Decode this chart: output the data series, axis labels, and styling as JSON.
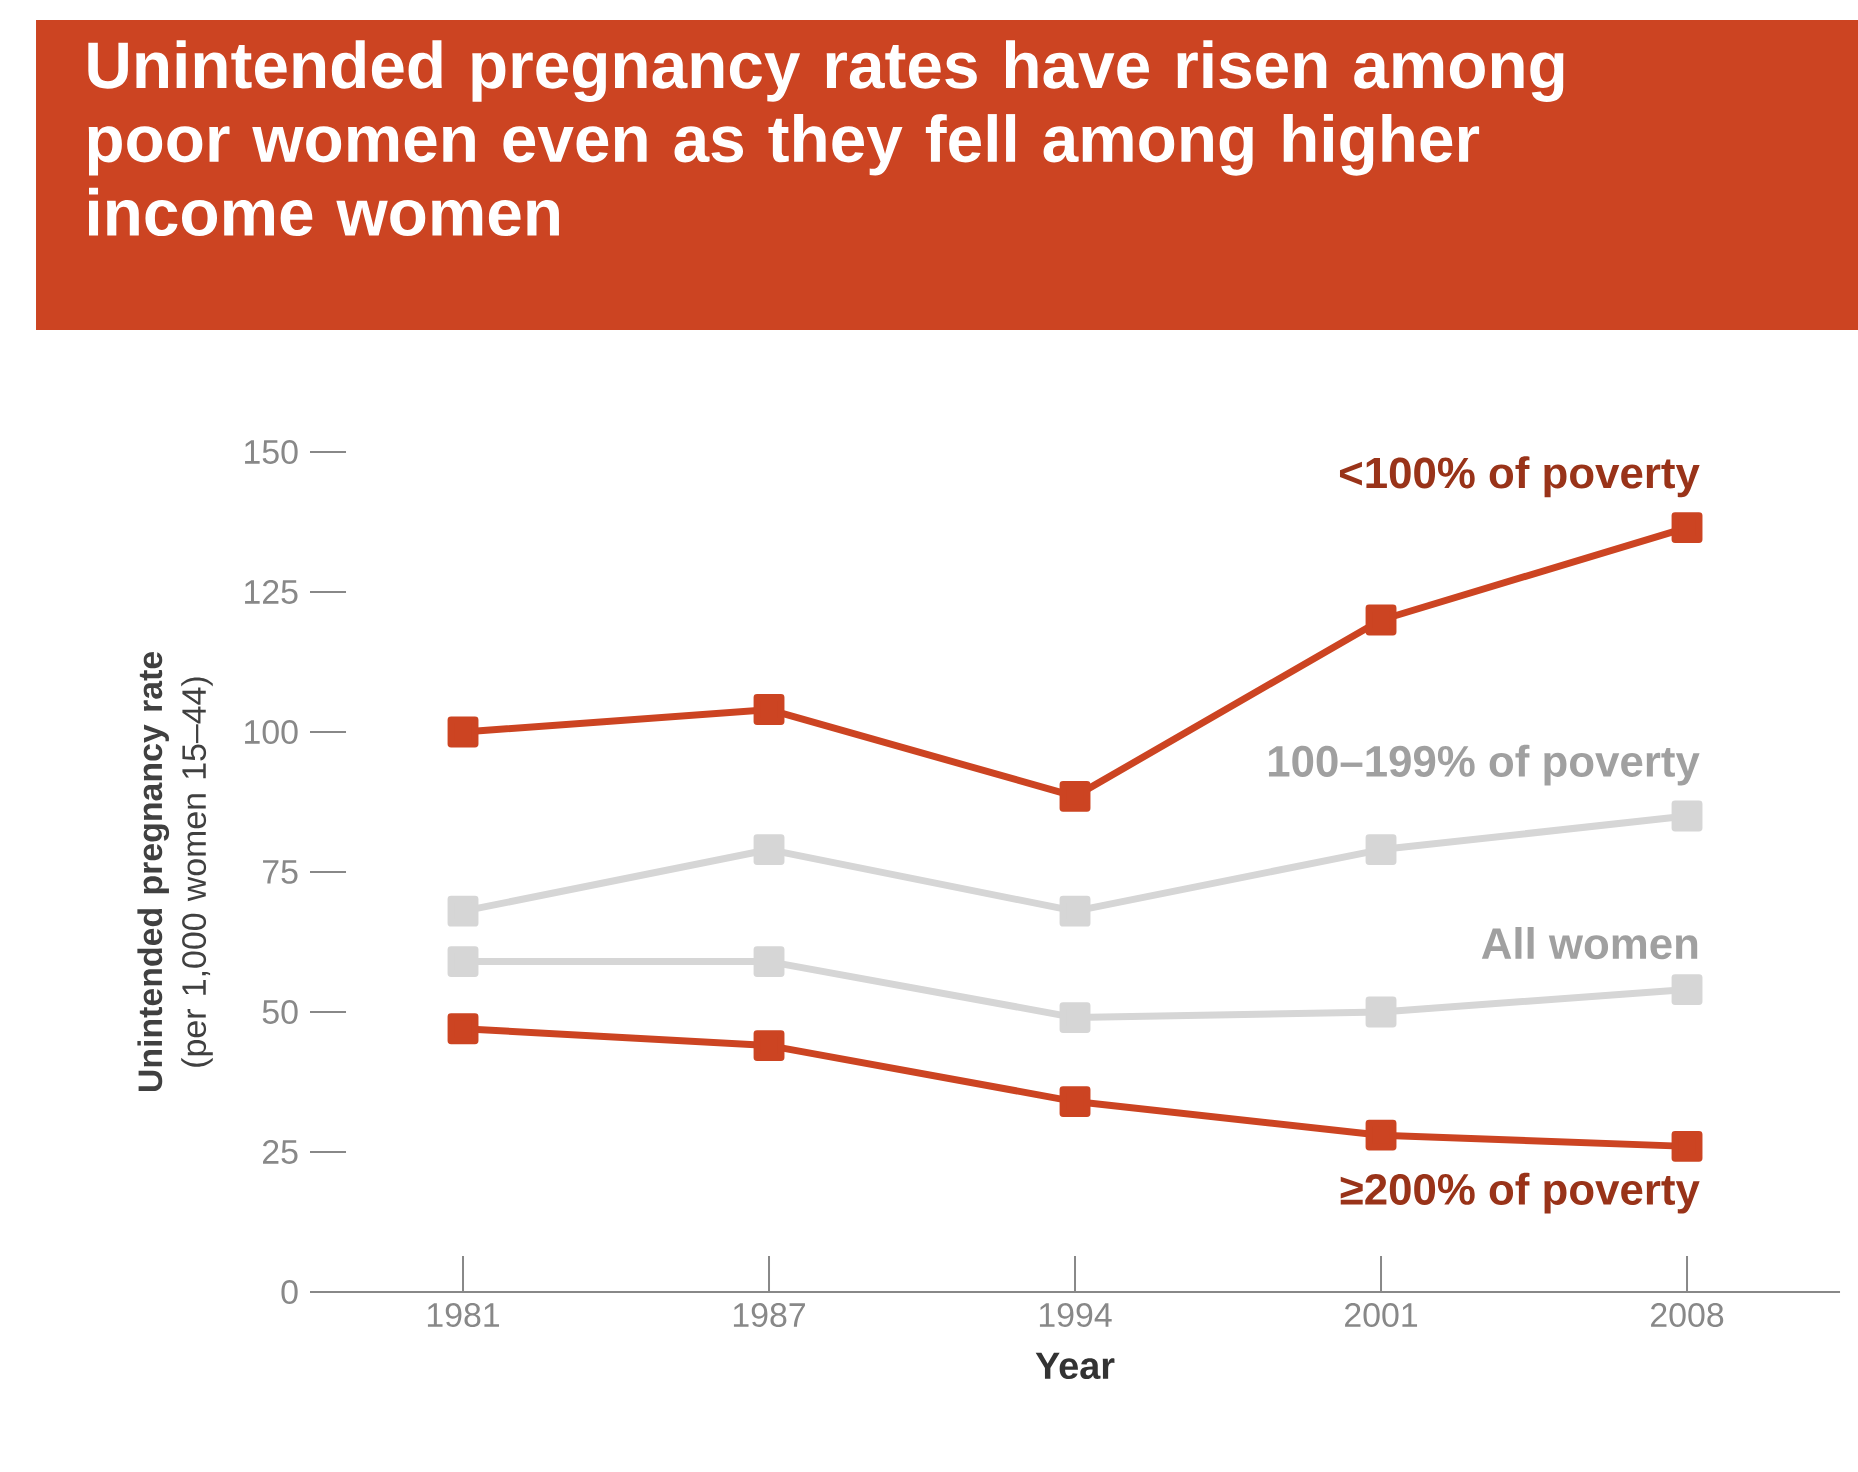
{
  "chart_data": {
    "type": "line",
    "title": "Unintended pregnancy rates have risen among poor women even as they fell among higher income women",
    "xlabel": "Year",
    "ylabel": "**Unintended pregnancy rate** (per 1,000 women 15–44)",
    "categories": [
      "1981",
      "1987",
      "1994",
      "2001",
      "2008"
    ],
    "ylim": [
      0,
      150
    ],
    "yticks": [
      0,
      25,
      50,
      75,
      100,
      125,
      150
    ],
    "marker": "square",
    "line_style": "solid",
    "series": [
      {
        "name": "<100% of poverty",
        "color": "#cc4422",
        "values": [
          100,
          104,
          88.5,
          120,
          136.5
        ]
      },
      {
        "name": "100–199% of poverty",
        "color": "#d6d6d6",
        "values": [
          68,
          79,
          68,
          79,
          85
        ]
      },
      {
        "name": "All women",
        "color": "#d6d6d6",
        "values": [
          59,
          59,
          49,
          50,
          54
        ]
      },
      {
        "name": "≥200% of poverty",
        "color": "#cc4422",
        "values": [
          47,
          44,
          34,
          28,
          26
        ]
      }
    ]
  }
}
